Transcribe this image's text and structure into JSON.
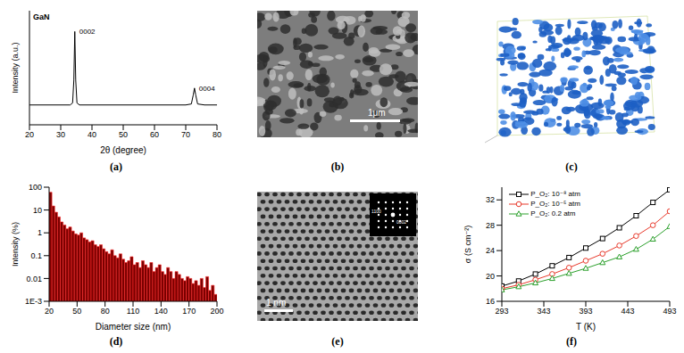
{
  "chart_data": [
    {
      "type": "line",
      "caption": "(a)",
      "xlabel": "2θ (degree)",
      "ylabel": "Intensity (a.u.)",
      "x": [
        20,
        30,
        33,
        33.8,
        34.2,
        34.5,
        34.8,
        35.2,
        36,
        40,
        50,
        60,
        70,
        71.8,
        72.4,
        72.8,
        73.2,
        73.8,
        76,
        80
      ],
      "values": [
        0.2,
        0.2,
        0.2,
        0.22,
        0.45,
        0.94,
        0.45,
        0.22,
        0.2,
        0.2,
        0.2,
        0.2,
        0.2,
        0.21,
        0.3,
        0.37,
        0.3,
        0.21,
        0.2,
        0.2
      ],
      "color": "#000000",
      "xlim": [
        20,
        80
      ],
      "xticks": [
        20,
        30,
        40,
        50,
        60,
        70,
        80
      ],
      "ylim": [
        0,
        1.15
      ],
      "tick_labels": "x",
      "annotations": [
        {
          "text": "GaN"
        },
        {
          "text": "0002",
          "x": 34.5
        },
        {
          "text": "0004",
          "x": 72.8
        }
      ]
    },
    {
      "type": "histogram",
      "caption": "(d)",
      "xlabel": "Diameter size (nm)",
      "ylabel": "Intensity (%)",
      "bins": [
        20,
        23,
        26,
        29,
        32,
        35,
        38,
        41,
        44,
        47,
        50,
        53,
        56,
        59,
        62,
        65,
        68,
        71,
        74,
        77,
        80,
        83,
        86,
        89,
        92,
        95,
        98,
        101,
        104,
        107,
        110,
        113,
        116,
        119,
        122,
        125,
        128,
        131,
        134,
        137,
        140,
        143,
        146,
        149,
        152,
        155,
        158,
        161,
        164,
        167,
        170,
        173,
        176,
        179,
        182,
        185,
        188,
        191,
        194,
        197,
        200
      ],
      "values": [
        60,
        15,
        8,
        5,
        3,
        2.2,
        1.5,
        1.8,
        1.2,
        0.9,
        0.8,
        1.0,
        0.6,
        0.5,
        0.4,
        0.45,
        0.3,
        0.25,
        0.3,
        0.2,
        0.15,
        0.12,
        0.18,
        0.1,
        0.08,
        0.12,
        0.07,
        0.05,
        0.06,
        0.09,
        0.04,
        0.05,
        0.03,
        0.06,
        0.04,
        0.03,
        0.05,
        0.02,
        0.03,
        0.04,
        0.02,
        0.015,
        0.03,
        0.02,
        0.01,
        0.02,
        0.015,
        0.01,
        0.008,
        0.012,
        0.01,
        0.006,
        0.008,
        0.005,
        0.01,
        0.004,
        0.012,
        0.003,
        0.005,
        0.002
      ],
      "color": "#7a0000",
      "xlim": [
        20,
        200
      ],
      "xticks": [
        20,
        50,
        80,
        110,
        140,
        170,
        200
      ],
      "ylim": [
        0.001,
        100
      ],
      "yticks": [
        {
          "value": 0.001,
          "label": "1E-3"
        },
        0.01,
        0.1,
        1,
        10,
        100
      ],
      "log": "y"
    },
    {
      "type": "line",
      "caption": "(f)",
      "xlabel": "T (K)",
      "ylabel": "σ (S cm⁻²)",
      "x": [
        293,
        313,
        333,
        353,
        373,
        393,
        413,
        433,
        453,
        473,
        493
      ],
      "series": [
        {
          "name": "P_O₂: 10⁻⁸ atm",
          "color": "#000000",
          "marker": "square",
          "values": [
            18.4,
            19.2,
            20.3,
            21.6,
            22.9,
            24.4,
            25.9,
            27.6,
            29.5,
            31.6,
            33.6
          ]
        },
        {
          "name": "P_O₂: 10⁻⁵ atm",
          "color": "#e8392b",
          "marker": "circle",
          "values": [
            18.0,
            18.6,
            19.4,
            20.3,
            21.3,
            22.4,
            23.5,
            24.8,
            26.3,
            28.0,
            30.2
          ]
        },
        {
          "name": "P_O₂: 0.2 atm",
          "color": "#2ca02c",
          "marker": "triangle",
          "values": [
            17.8,
            18.3,
            18.9,
            19.6,
            20.4,
            21.2,
            22.1,
            23.0,
            24.2,
            25.8,
            27.8
          ]
        }
      ],
      "xlim": [
        293,
        493
      ],
      "xticks": [
        293,
        343,
        393,
        443,
        493
      ],
      "ylim": [
        16,
        34
      ],
      "yticks": [
        16,
        20,
        24,
        28,
        32
      ],
      "legend": "upper left"
    }
  ],
  "images": [
    {
      "caption": "(b)",
      "scale_bar": "1μm"
    },
    {
      "caption": "(c)"
    },
    {
      "caption": "(e)",
      "scale_bar": "1 nm",
      "inset_labels": [
        "1100",
        "0002"
      ]
    }
  ]
}
